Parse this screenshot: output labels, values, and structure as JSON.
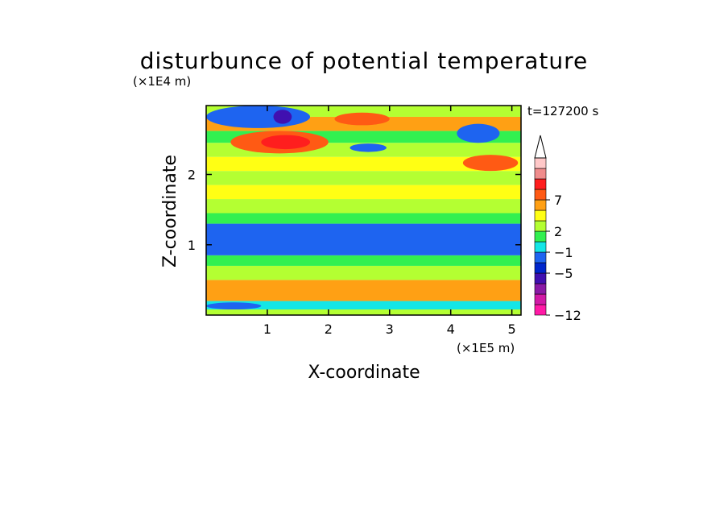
{
  "chart_data": {
    "type": "heatmap",
    "title": "disturbunce of potential temperature",
    "xlabel": "X-coordinate",
    "ylabel": "Z-coordinate",
    "x_unit": "(×1E5 m)",
    "y_unit": "(×1E4 m)",
    "time_label": "t=127200 s",
    "xlim": [
      0,
      5.15
    ],
    "ylim": [
      0,
      2.98
    ],
    "x_ticks": [
      {
        "value": 1,
        "label": "1"
      },
      {
        "value": 2,
        "label": "2"
      },
      {
        "value": 3,
        "label": "3"
      },
      {
        "value": 4,
        "label": "4"
      },
      {
        "value": 5,
        "label": "5"
      }
    ],
    "y_ticks": [
      {
        "value": 1,
        "label": "1"
      },
      {
        "value": 2,
        "label": "2"
      }
    ],
    "colorbar": {
      "levels": [
        -12,
        -11,
        -9,
        -7,
        -5,
        -3,
        -1,
        1,
        2,
        3,
        5,
        7,
        9,
        11
      ],
      "colors": [
        "#ff1aa6",
        "#d11aa6",
        "#8a1aa6",
        "#4010b0",
        "#0026cc",
        "#1e64f0",
        "#14e6e6",
        "#32f050",
        "#b4ff32",
        "#ffff14",
        "#ffa014",
        "#ff5a14",
        "#ff1e1e",
        "#f08c8c",
        "#ffc8c8"
      ],
      "labels": [
        {
          "value": 7,
          "label": "7"
        },
        {
          "value": 2,
          "label": "2"
        },
        {
          "value": -1,
          "label": "−1"
        },
        {
          "value": -5,
          "label": "−5"
        },
        {
          "value": -12,
          "label": "−12"
        }
      ],
      "extend": "max"
    },
    "bands": [
      {
        "z": [
          0.0,
          0.08
        ],
        "value": 1.5
      },
      {
        "z": [
          0.08,
          0.2
        ],
        "value": -2.0
      },
      {
        "z": [
          0.2,
          0.5
        ],
        "value": 3.0
      },
      {
        "z": [
          0.5,
          0.7
        ],
        "value": 1.5
      },
      {
        "z": [
          0.7,
          0.85
        ],
        "value": 0.0
      },
      {
        "z": [
          0.85,
          1.3
        ],
        "value": -4.0
      },
      {
        "z": [
          1.3,
          1.45
        ],
        "value": 0.0
      },
      {
        "z": [
          1.45,
          1.65
        ],
        "value": 1.5
      },
      {
        "z": [
          1.65,
          1.85
        ],
        "value": 2.5
      },
      {
        "z": [
          1.85,
          2.05
        ],
        "value": 1.5
      },
      {
        "z": [
          2.05,
          2.25
        ],
        "value": 2.5
      },
      {
        "z": [
          2.25,
          2.45
        ],
        "value": 1.5
      },
      {
        "z": [
          2.45,
          2.62
        ],
        "value": 0.0
      },
      {
        "z": [
          2.62,
          2.82
        ],
        "value": 4.0
      },
      {
        "z": [
          2.82,
          2.98
        ],
        "value": 1.5
      }
    ],
    "features": [
      {
        "name": "upper-left-cold-core",
        "x": [
          0.0,
          1.7
        ],
        "z": [
          2.66,
          2.98
        ],
        "value": -4.0
      },
      {
        "name": "upper-left-purple-spot",
        "x": [
          1.1,
          1.4
        ],
        "z": [
          2.72,
          2.92
        ],
        "value": -8.0
      },
      {
        "name": "warm-core-left",
        "x": [
          0.4,
          2.0
        ],
        "z": [
          2.3,
          2.62
        ],
        "value": 5.5
      },
      {
        "name": "warm-max-left",
        "x": [
          0.9,
          1.7
        ],
        "z": [
          2.36,
          2.56
        ],
        "value": 7.5
      },
      {
        "name": "warm-max-center",
        "x": [
          2.1,
          3.0
        ],
        "z": [
          2.7,
          2.88
        ],
        "value": 5.5
      },
      {
        "name": "cold-patch-center",
        "x": [
          2.35,
          2.95
        ],
        "z": [
          2.32,
          2.44
        ],
        "value": -4.0
      },
      {
        "name": "cold-patch-right",
        "x": [
          4.1,
          4.8
        ],
        "z": [
          2.45,
          2.72
        ],
        "value": -4.0
      },
      {
        "name": "warm-right",
        "x": [
          4.2,
          5.1
        ],
        "z": [
          2.05,
          2.28
        ],
        "value": 5.0
      },
      {
        "name": "cold-low-left",
        "x": [
          0.0,
          0.9
        ],
        "z": [
          0.08,
          0.18
        ],
        "value": -4.0
      }
    ]
  }
}
